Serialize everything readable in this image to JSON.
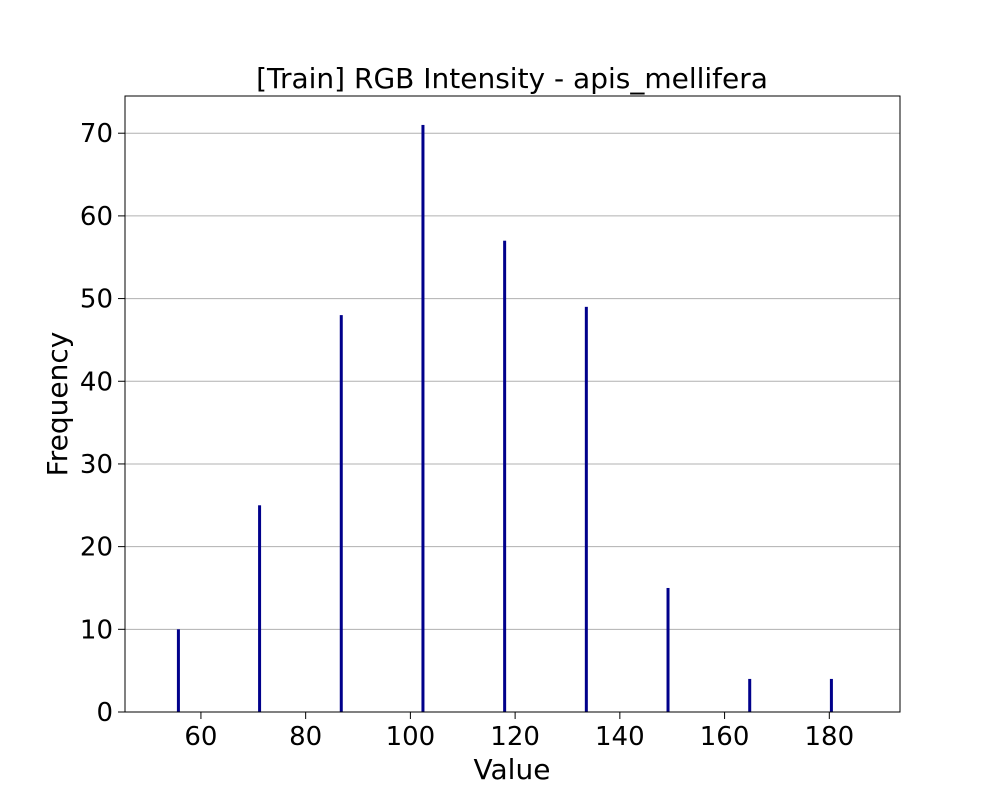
{
  "chart_data": {
    "type": "bar",
    "title": "[Train] RGB Intensity - apis_mellifera",
    "xlabel": "Value",
    "ylabel": "Frequency",
    "x": [
      55.7,
      71.2,
      86.8,
      102.4,
      118.0,
      133.6,
      149.2,
      164.8,
      180.4
    ],
    "values": [
      10,
      25,
      48,
      71,
      57,
      49,
      15,
      4,
      4
    ],
    "bar_width": 0.5,
    "xlim": [
      45.5,
      193.5
    ],
    "ylim": [
      0,
      74.5
    ],
    "xticks": [
      60,
      80,
      100,
      120,
      140,
      160,
      180
    ],
    "yticks": [
      0,
      10,
      20,
      30,
      40,
      50,
      60,
      70
    ],
    "grid": "y",
    "bar_color": "#00008b"
  }
}
